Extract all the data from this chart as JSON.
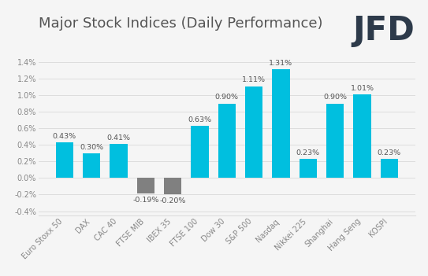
{
  "title": "Major Stock Indices (Daily Performance)",
  "categories": [
    "Euro Stoxx 50",
    "DAX",
    "CAC 40",
    "FTSE MIB",
    "IBEX 35",
    "FTSE 100",
    "Dow 30",
    "S&P 500",
    "Nasdaq",
    "Nikkei 225",
    "Shanghai",
    "Hang Seng",
    "KOSPI"
  ],
  "values": [
    0.43,
    0.3,
    0.41,
    -0.19,
    -0.2,
    0.63,
    0.9,
    1.11,
    1.31,
    0.23,
    0.9,
    1.01,
    0.23
  ],
  "bar_color_positive": "#00BFDF",
  "bar_color_negative": "#808080",
  "background_color": "#f5f5f5",
  "grid_color": "#dddddd",
  "title_fontsize": 13,
  "tick_fontsize": 7,
  "value_fontsize": 6.8,
  "ylim": [
    -0.45,
    1.55
  ],
  "yticks": [
    -0.4,
    -0.2,
    0.0,
    0.2,
    0.4,
    0.6,
    0.8,
    1.0,
    1.2,
    1.4
  ],
  "jfd_color": "#2d3a4a",
  "jfd_fontsize": 30,
  "title_color": "#555555",
  "tick_color": "#888888"
}
